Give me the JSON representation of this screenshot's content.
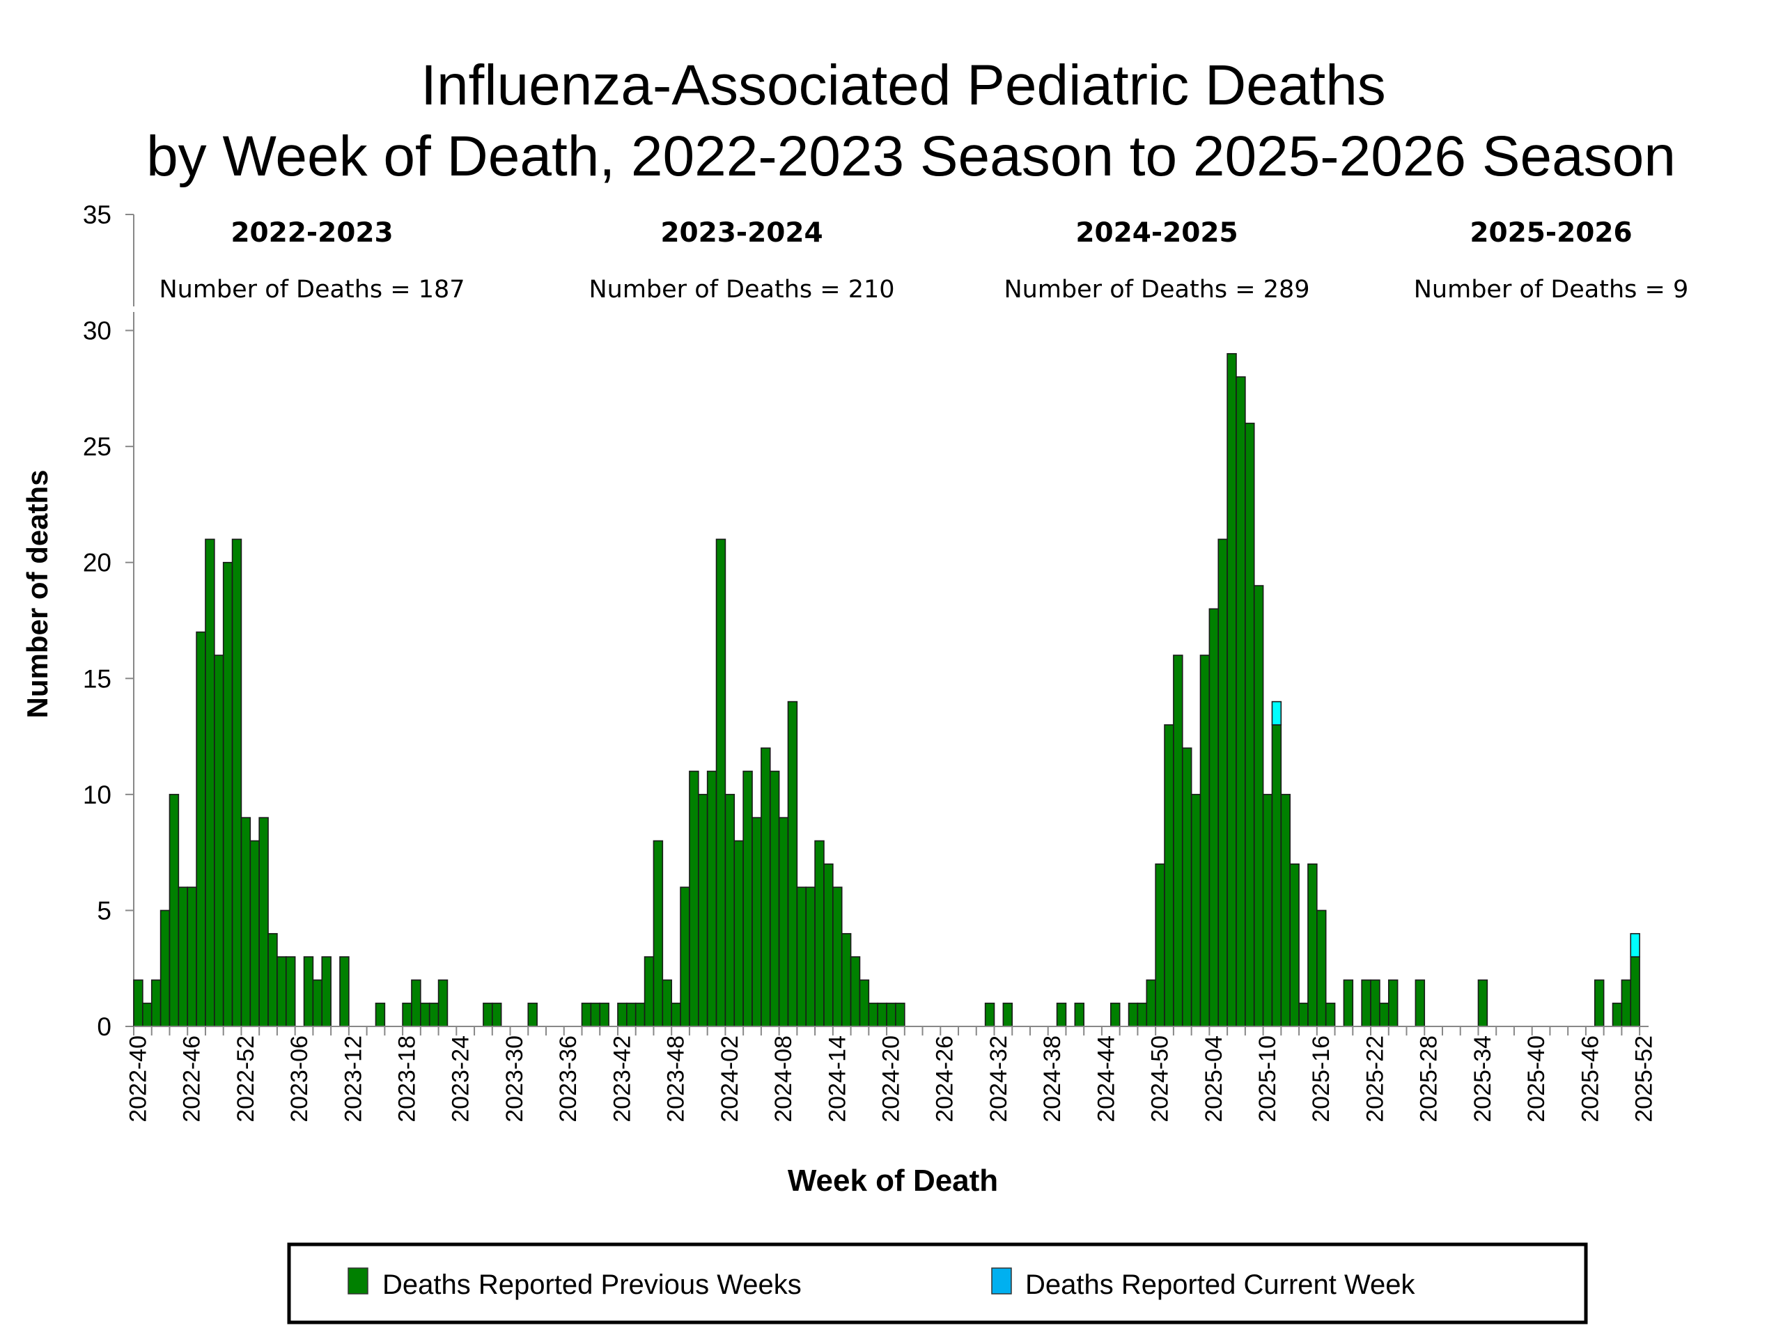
{
  "chart_data": {
    "type": "bar",
    "stacked": true,
    "title": [
      "Influenza-Associated Pediatric Deaths",
      "by Week of Death, 2022-2023 Season to 2025-2026 Season"
    ],
    "xlabel": "Week of Death",
    "ylabel": "Number of deaths",
    "ylim": [
      0,
      35
    ],
    "y_ticks": [
      0,
      5,
      10,
      15,
      20,
      25,
      30,
      35
    ],
    "grid": false,
    "x_tick_labels": [
      "2022-40",
      "2022-46",
      "2022-52",
      "2023-06",
      "2023-12",
      "2023-18",
      "2023-24",
      "2023-30",
      "2023-36",
      "2023-42",
      "2023-48",
      "2024-02",
      "2024-08",
      "2024-14",
      "2024-20",
      "2024-26",
      "2024-32",
      "2024-38",
      "2024-44",
      "2024-50",
      "2025-04",
      "2025-10",
      "2025-16",
      "2025-22",
      "2025-28",
      "2025-34",
      "2025-40",
      "2025-46",
      "2025-52"
    ],
    "seasons": [
      {
        "label": "2022-2023",
        "summary": "Number of Deaths = 187"
      },
      {
        "label": "2023-2024",
        "summary": "Number of Deaths = 210"
      },
      {
        "label": "2024-2025",
        "summary": "Number of Deaths = 289"
      },
      {
        "label": "2025-2026",
        "summary": "Number of Deaths = 9"
      }
    ],
    "series": [
      {
        "name": "Deaths Reported Previous Weeks",
        "color": "#008000",
        "values": [
          2,
          1,
          2,
          5,
          10,
          6,
          6,
          17,
          21,
          16,
          20,
          21,
          9,
          8,
          9,
          4,
          3,
          3,
          0,
          3,
          2,
          3,
          0,
          3,
          0,
          0,
          0,
          1,
          0,
          0,
          1,
          2,
          1,
          1,
          2,
          0,
          0,
          0,
          0,
          1,
          1,
          0,
          0,
          0,
          1,
          0,
          0,
          0,
          0,
          0,
          1,
          1,
          1,
          0,
          1,
          1,
          1,
          3,
          8,
          2,
          1,
          6,
          11,
          10,
          11,
          21,
          10,
          8,
          11,
          9,
          12,
          11,
          9,
          14,
          6,
          6,
          8,
          7,
          6,
          4,
          3,
          2,
          1,
          1,
          1,
          1,
          0,
          0,
          0,
          0,
          0,
          0,
          0,
          0,
          0,
          1,
          0,
          1,
          0,
          0,
          0,
          0,
          0,
          1,
          0,
          1,
          0,
          0,
          0,
          1,
          0,
          1,
          1,
          2,
          7,
          13,
          16,
          12,
          10,
          16,
          18,
          21,
          29,
          28,
          26,
          19,
          10,
          13,
          10,
          7,
          1,
          7,
          5,
          1,
          0,
          2,
          0,
          2,
          2,
          1,
          2,
          0,
          0,
          2,
          0,
          0,
          0,
          0,
          0,
          0,
          2,
          0,
          0,
          0,
          0,
          0,
          0,
          0,
          0,
          0,
          0,
          0,
          0,
          2,
          0,
          1,
          2,
          3,
          0
        ]
      },
      {
        "name": "Deaths Reported Current Week",
        "color": "#00FFFF",
        "legend_color": "#00B0F0",
        "values": [
          0,
          0,
          0,
          0,
          0,
          0,
          0,
          0,
          0,
          0,
          0,
          0,
          0,
          0,
          0,
          0,
          0,
          0,
          0,
          0,
          0,
          0,
          0,
          0,
          0,
          0,
          0,
          0,
          0,
          0,
          0,
          0,
          0,
          0,
          0,
          0,
          0,
          0,
          0,
          0,
          0,
          0,
          0,
          0,
          0,
          0,
          0,
          0,
          0,
          0,
          0,
          0,
          0,
          0,
          0,
          0,
          0,
          0,
          0,
          0,
          0,
          0,
          0,
          0,
          0,
          0,
          0,
          0,
          0,
          0,
          0,
          0,
          0,
          0,
          0,
          0,
          0,
          0,
          0,
          0,
          0,
          0,
          0,
          0,
          0,
          0,
          0,
          0,
          0,
          0,
          0,
          0,
          0,
          0,
          0,
          0,
          0,
          0,
          0,
          0,
          0,
          0,
          0,
          0,
          0,
          0,
          0,
          0,
          0,
          0,
          0,
          0,
          0,
          0,
          0,
          0,
          0,
          0,
          0,
          0,
          0,
          0,
          0,
          0,
          0,
          0,
          0,
          1,
          0,
          0,
          0,
          0,
          0,
          0,
          0,
          0,
          0,
          0,
          0,
          0,
          0,
          0,
          0,
          0,
          0,
          0,
          0,
          0,
          0,
          0,
          0,
          0,
          0,
          0,
          0,
          0,
          0,
          0,
          0,
          0,
          0,
          0,
          0,
          0,
          0,
          0,
          0,
          1,
          0
        ]
      }
    ],
    "legend": {
      "placement": "bottom",
      "items": [
        "Deaths Reported Previous Weeks",
        "Deaths Reported Current Week"
      ]
    }
  }
}
